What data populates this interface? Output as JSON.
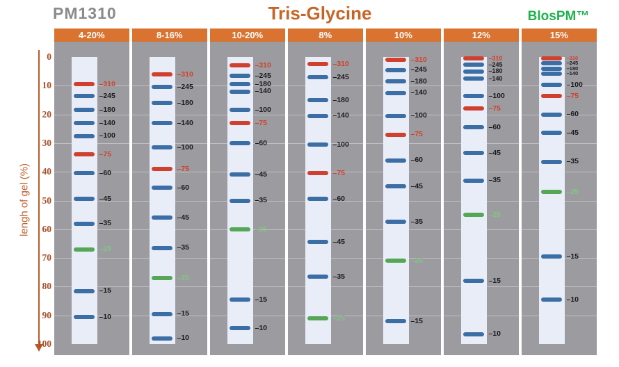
{
  "titles": {
    "left": "PM1310",
    "center": "Tris-Glycine",
    "right": "BlosPM™"
  },
  "y_axis": {
    "label": "lengh of gel (%)",
    "min": 0,
    "max": 100,
    "ticks": [
      0,
      10,
      20,
      30,
      40,
      50,
      60,
      70,
      80,
      90,
      100
    ]
  },
  "tick_char": "–",
  "colors": {
    "header_bg": "#d9732f",
    "panel_bg": "#9c9ca0",
    "lane_bg": "#e9edf8",
    "band_blue": "#3a6ea5",
    "band_red": "#d0402e",
    "band_green": "#55a755",
    "label_blue_text": "#1c1c1e",
    "label_red_text": "#d0402e",
    "label_green_text": "#82c382",
    "axis": "#b85a28",
    "ytick_text": "#a8502a",
    "yaxis_label_text": "#c05f2c",
    "title_left": "#8b8b8d",
    "title_center": "#c76527",
    "title_right": "#1fb14e"
  },
  "chart_data": {
    "type": "scatter",
    "subtype": "protein-marker-gel-migration-chart",
    "marker_name": "PM1310",
    "gel_system": "Tris-Glycine",
    "brand": "BlosPM™",
    "ylabel": "lengh of gel (%)",
    "ylim": [
      0,
      100
    ],
    "band_color_legend": {
      "red": [
        310,
        75
      ],
      "green": [
        25
      ],
      "blue": [
        245,
        180,
        140,
        100,
        60,
        45,
        35,
        15,
        10
      ]
    },
    "lanes": [
      {
        "gel": "4-20%",
        "bands": [
          {
            "mw": 310,
            "pos": 9.5,
            "color": "red"
          },
          {
            "mw": 245,
            "pos": 13.5,
            "color": "blue"
          },
          {
            "mw": 180,
            "pos": 18.5,
            "color": "blue"
          },
          {
            "mw": 140,
            "pos": 23,
            "color": "blue"
          },
          {
            "mw": 100,
            "pos": 27.5,
            "color": "blue"
          },
          {
            "mw": 75,
            "pos": 34,
            "color": "red"
          },
          {
            "mw": 60,
            "pos": 40.5,
            "color": "blue"
          },
          {
            "mw": 45,
            "pos": 49.5,
            "color": "blue"
          },
          {
            "mw": 35,
            "pos": 58,
            "color": "blue"
          },
          {
            "mw": 25,
            "pos": 67,
            "color": "green"
          },
          {
            "mw": 15,
            "pos": 81.5,
            "color": "blue"
          },
          {
            "mw": 10,
            "pos": 90.5,
            "color": "blue"
          }
        ]
      },
      {
        "gel": "8-16%",
        "bands": [
          {
            "mw": 310,
            "pos": 6,
            "color": "red"
          },
          {
            "mw": 245,
            "pos": 10.5,
            "color": "blue"
          },
          {
            "mw": 180,
            "pos": 16,
            "color": "blue"
          },
          {
            "mw": 140,
            "pos": 23,
            "color": "blue"
          },
          {
            "mw": 100,
            "pos": 31.5,
            "color": "blue"
          },
          {
            "mw": 75,
            "pos": 39,
            "color": "red"
          },
          {
            "mw": 60,
            "pos": 45.5,
            "color": "blue"
          },
          {
            "mw": 45,
            "pos": 56,
            "color": "blue"
          },
          {
            "mw": 35,
            "pos": 66.5,
            "color": "blue"
          },
          {
            "mw": 25,
            "pos": 77,
            "color": "green"
          },
          {
            "mw": 15,
            "pos": 89.5,
            "color": "blue"
          },
          {
            "mw": 10,
            "pos": 98,
            "color": "blue"
          }
        ]
      },
      {
        "gel": "10-20%",
        "bands": [
          {
            "mw": 310,
            "pos": 3,
            "color": "red"
          },
          {
            "mw": 245,
            "pos": 6.5,
            "color": "blue"
          },
          {
            "mw": 180,
            "pos": 9.5,
            "color": "blue"
          },
          {
            "mw": 140,
            "pos": 12,
            "color": "blue"
          },
          {
            "mw": 100,
            "pos": 18.5,
            "color": "blue"
          },
          {
            "mw": 75,
            "pos": 23,
            "color": "red"
          },
          {
            "mw": 60,
            "pos": 30,
            "color": "blue"
          },
          {
            "mw": 45,
            "pos": 41,
            "color": "blue"
          },
          {
            "mw": 35,
            "pos": 50,
            "color": "blue"
          },
          {
            "mw": 25,
            "pos": 60,
            "color": "green"
          },
          {
            "mw": 15,
            "pos": 84.5,
            "color": "blue"
          },
          {
            "mw": 10,
            "pos": 94.5,
            "color": "blue"
          }
        ]
      },
      {
        "gel": "8%",
        "bands": [
          {
            "mw": 310,
            "pos": 2.5,
            "color": "red"
          },
          {
            "mw": 245,
            "pos": 7,
            "color": "blue"
          },
          {
            "mw": 180,
            "pos": 15,
            "color": "blue"
          },
          {
            "mw": 140,
            "pos": 20.5,
            "color": "blue"
          },
          {
            "mw": 100,
            "pos": 30.5,
            "color": "blue"
          },
          {
            "mw": 75,
            "pos": 40.5,
            "color": "red"
          },
          {
            "mw": 60,
            "pos": 49.5,
            "color": "blue"
          },
          {
            "mw": 45,
            "pos": 64.5,
            "color": "blue"
          },
          {
            "mw": 35,
            "pos": 76.5,
            "color": "blue"
          },
          {
            "mw": 25,
            "pos": 91,
            "color": "green"
          }
        ]
      },
      {
        "gel": "10%",
        "bands": [
          {
            "mw": 310,
            "pos": 1,
            "color": "red"
          },
          {
            "mw": 245,
            "pos": 4.5,
            "color": "blue"
          },
          {
            "mw": 180,
            "pos": 8.5,
            "color": "blue"
          },
          {
            "mw": 140,
            "pos": 12.5,
            "color": "blue"
          },
          {
            "mw": 100,
            "pos": 20.5,
            "color": "blue"
          },
          {
            "mw": 75,
            "pos": 27,
            "color": "red"
          },
          {
            "mw": 60,
            "pos": 36,
            "color": "blue"
          },
          {
            "mw": 45,
            "pos": 45,
            "color": "blue"
          },
          {
            "mw": 35,
            "pos": 57.5,
            "color": "blue"
          },
          {
            "mw": 25,
            "pos": 71,
            "color": "green"
          },
          {
            "mw": 15,
            "pos": 92,
            "color": "blue"
          }
        ]
      },
      {
        "gel": "12%",
        "bands": [
          {
            "mw": 310,
            "pos": 0.5,
            "color": "red",
            "fs": 9
          },
          {
            "mw": 245,
            "pos": 2.7,
            "color": "blue",
            "fs": 9
          },
          {
            "mw": 180,
            "pos": 5,
            "color": "blue",
            "fs": 9
          },
          {
            "mw": 140,
            "pos": 7.6,
            "color": "blue",
            "fs": 9
          },
          {
            "mw": 100,
            "pos": 13.5,
            "color": "blue"
          },
          {
            "mw": 75,
            "pos": 18,
            "color": "red"
          },
          {
            "mw": 60,
            "pos": 24.5,
            "color": "blue"
          },
          {
            "mw": 45,
            "pos": 33.5,
            "color": "blue"
          },
          {
            "mw": 35,
            "pos": 43,
            "color": "blue"
          },
          {
            "mw": 25,
            "pos": 55,
            "color": "green"
          },
          {
            "mw": 15,
            "pos": 78,
            "color": "blue"
          },
          {
            "mw": 10,
            "pos": 96.5,
            "color": "blue"
          }
        ]
      },
      {
        "gel": "15%",
        "bands": [
          {
            "mw": 310,
            "pos": 0.4,
            "color": "red",
            "fs": 7.5
          },
          {
            "mw": 245,
            "pos": 2.2,
            "color": "blue",
            "fs": 7.5
          },
          {
            "mw": 180,
            "pos": 4,
            "color": "blue",
            "fs": 7.5
          },
          {
            "mw": 140,
            "pos": 5.8,
            "color": "blue",
            "fs": 7.5
          },
          {
            "mw": 100,
            "pos": 9.7,
            "color": "blue"
          },
          {
            "mw": 75,
            "pos": 13.5,
            "color": "red"
          },
          {
            "mw": 60,
            "pos": 20,
            "color": "blue"
          },
          {
            "mw": 45,
            "pos": 26.5,
            "color": "blue"
          },
          {
            "mw": 35,
            "pos": 36.5,
            "color": "blue"
          },
          {
            "mw": 25,
            "pos": 47,
            "color": "green"
          },
          {
            "mw": 15,
            "pos": 69.5,
            "color": "blue"
          },
          {
            "mw": 10,
            "pos": 84.5,
            "color": "blue"
          }
        ]
      }
    ]
  }
}
